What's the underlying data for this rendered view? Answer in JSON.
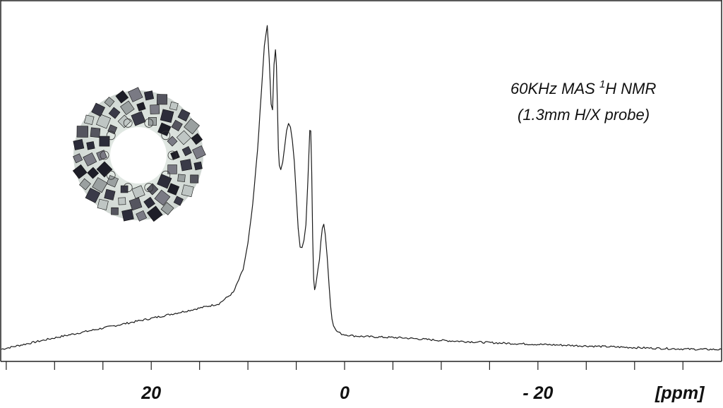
{
  "chart_data": {
    "type": "line",
    "title": "",
    "xlabel": "[ppm]",
    "ylabel": "",
    "x_reversed": true,
    "xlim": [
      35.5,
      -39
    ],
    "ylim": [
      0,
      1
    ],
    "grid": false,
    "legend": "none",
    "line_color": "#1a1a1a",
    "tick_labels": [
      {
        "value": 20,
        "text": "20"
      },
      {
        "value": 0,
        "text": "0"
      },
      {
        "value": -20,
        "text": "- 20"
      }
    ],
    "major_ticks": [
      35,
      30,
      25,
      20,
      15,
      10,
      5,
      0,
      -5,
      -10,
      -15,
      -20,
      -25,
      -30,
      -35
    ],
    "annotation": {
      "line1_before": "60KHz MAS ",
      "line1_sup": "1",
      "line1_after": "H NMR",
      "line2": "(1.3mm H/X probe)"
    },
    "inset_image": "mof-crystal-structure-ring",
    "series": [
      {
        "x": [
          35.5,
          30,
          25,
          20,
          16,
          13,
          11.5,
          10.5,
          10,
          9.5,
          9.0,
          8.6,
          8.3,
          8.0,
          7.8,
          7.6,
          7.45,
          7.3,
          7.15,
          7.05,
          6.95,
          6.85,
          6.75,
          6.6,
          6.4,
          6.2,
          6.0,
          5.8,
          5.6,
          5.4,
          5.2,
          5.0,
          4.8,
          4.6,
          4.4,
          4.2,
          4.0,
          3.8,
          3.6,
          3.5,
          3.4,
          3.3,
          3.2,
          3.1,
          3.0,
          2.9,
          2.75,
          2.6,
          2.45,
          2.3,
          2.15,
          2.0,
          1.8,
          1.6,
          1.45,
          1.3,
          1.15,
          1.0,
          0.85,
          0.7,
          0.5,
          0.3,
          0.0,
          -0.5,
          -1.0,
          -2,
          -4,
          -6,
          -8,
          -10,
          -13,
          -16,
          -20,
          -24,
          -28,
          -32,
          -36,
          -39
        ],
        "y": [
          0.005,
          0.04,
          0.07,
          0.1,
          0.125,
          0.145,
          0.18,
          0.25,
          0.33,
          0.45,
          0.62,
          0.8,
          0.94,
          1.0,
          0.9,
          0.76,
          0.74,
          0.88,
          0.93,
          0.88,
          0.76,
          0.62,
          0.57,
          0.56,
          0.58,
          0.63,
          0.68,
          0.7,
          0.69,
          0.65,
          0.58,
          0.48,
          0.38,
          0.32,
          0.32,
          0.34,
          0.39,
          0.52,
          0.68,
          0.675,
          0.55,
          0.35,
          0.22,
          0.19,
          0.2,
          0.22,
          0.25,
          0.28,
          0.34,
          0.38,
          0.39,
          0.36,
          0.29,
          0.2,
          0.14,
          0.1,
          0.08,
          0.068,
          0.062,
          0.058,
          0.055,
          0.052,
          0.05,
          0.048,
          0.046,
          0.044,
          0.042,
          0.04,
          0.036,
          0.032,
          0.028,
          0.024,
          0.02,
          0.016,
          0.012,
          0.008,
          0.005,
          0.004
        ]
      }
    ]
  }
}
